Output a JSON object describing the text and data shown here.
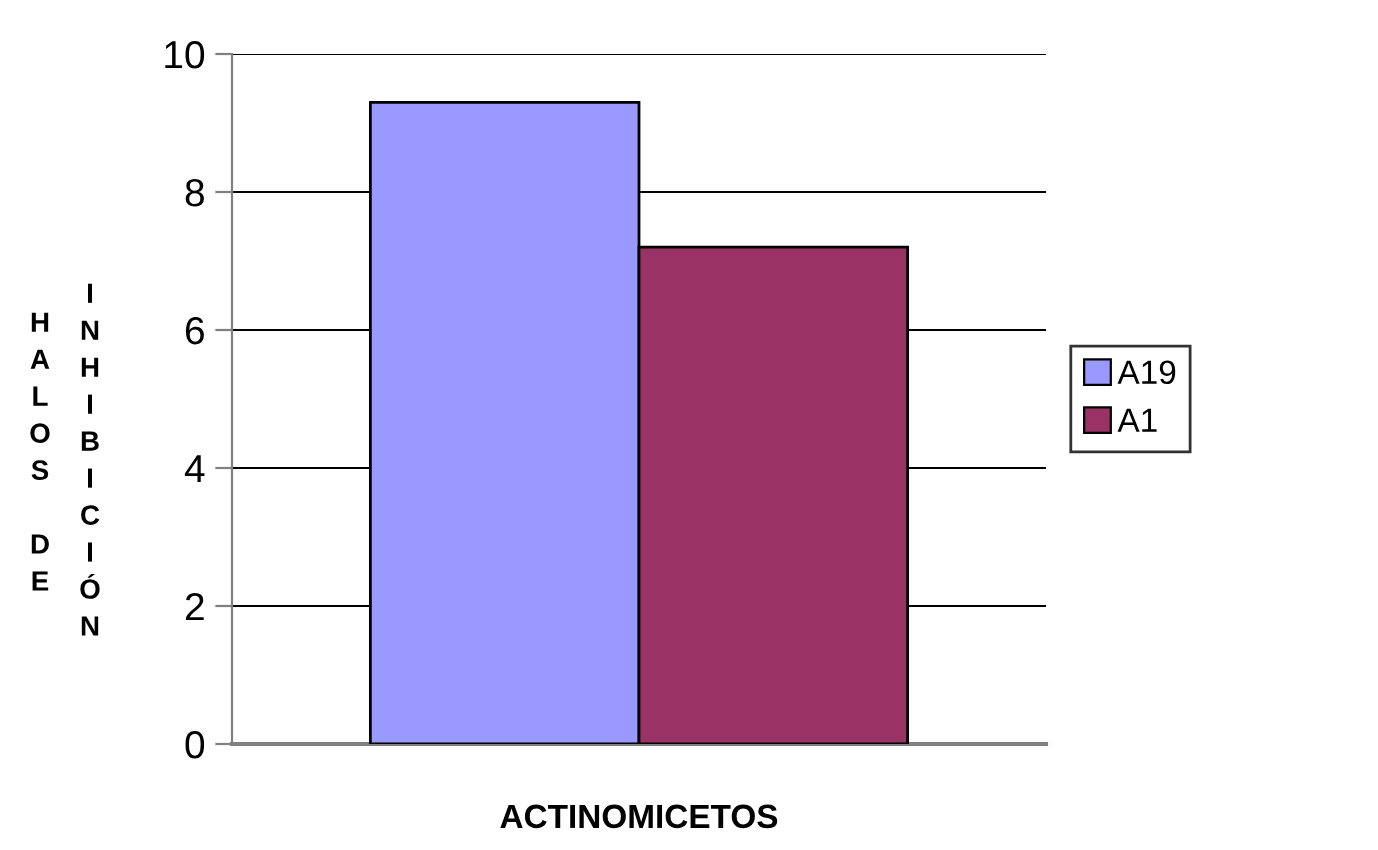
{
  "chart_data": {
    "type": "bar",
    "categories": [
      null
    ],
    "xlabel": "ACTINOMICETOS",
    "ylabel": "HALOS DE INHIBICIÓN",
    "series": [
      {
        "name": "A19",
        "color": "#9999ff",
        "values": [
          9.3
        ]
      },
      {
        "name": "A1",
        "color": "#993366",
        "values": [
          7.2
        ]
      }
    ],
    "ylim": [
      0,
      10
    ],
    "yticks": [
      0,
      2,
      4,
      6,
      8,
      10
    ],
    "grid": "y",
    "legend": "right"
  }
}
